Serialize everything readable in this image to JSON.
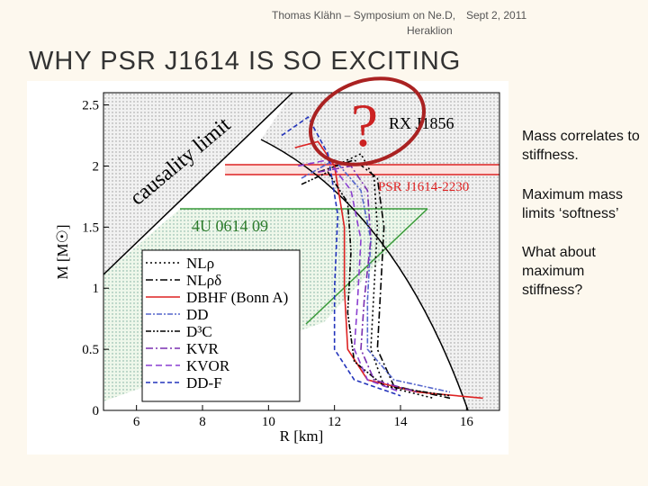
{
  "header": {
    "author_line": "Thomas Klähn – Symposium on Ne.D,",
    "place": "Heraklion",
    "date": "Sept 2, 2011"
  },
  "title": "WHY PSR J1614 IS SO EXCITING",
  "bullets": [
    "Mass correlates to stiffness.",
    "Maximum mass limits ‘softness’",
    "What about maximum stiffness?"
  ],
  "chart_data": {
    "type": "line",
    "x_label": "R [km]",
    "y_label": "M  [M☉]",
    "xlim": [
      5,
      17
    ],
    "xticks": [
      6,
      8,
      10,
      12,
      14,
      16
    ],
    "ylim": [
      0,
      2.6
    ],
    "yticks": [
      0,
      0.5,
      1,
      1.5,
      2,
      2.5
    ],
    "annotations": [
      "causality limit",
      "RX J1856",
      "PSR J1614-2230",
      "4U 0614   09",
      "?"
    ],
    "series": [
      {
        "name": "NLρ",
        "color": "#000000",
        "dash": "2,3",
        "x": [
          12.0,
          12.8,
          13.2,
          13.3,
          13.2,
          13.1,
          13.5,
          15.0
        ],
        "values": [
          2.0,
          2.1,
          1.9,
          1.5,
          1.0,
          0.5,
          0.2,
          0.1
        ]
      },
      {
        "name": "NLρδ",
        "color": "#000000",
        "dash": "8,3,2,3",
        "x": [
          11.5,
          12.6,
          13.3,
          13.5,
          13.4,
          13.3,
          13.8,
          15.5
        ],
        "values": [
          1.95,
          2.05,
          1.9,
          1.5,
          1.0,
          0.5,
          0.2,
          0.1
        ]
      },
      {
        "name": "DBHF (Bonn A)",
        "color": "#dd2222",
        "dash": "none",
        "x": [
          10.8,
          11.5,
          12.0,
          12.3,
          12.3,
          12.4,
          13.0,
          14.5,
          16.5
        ],
        "values": [
          2.15,
          2.2,
          2.0,
          1.5,
          1.0,
          0.5,
          0.25,
          0.15,
          0.1
        ]
      },
      {
        "name": "DD",
        "color": "#5566cc",
        "dash": "6,2,2,2",
        "x": [
          11.0,
          12.0,
          12.8,
          13.1,
          13.0,
          13.0,
          13.8,
          15.5
        ],
        "values": [
          1.9,
          2.05,
          1.8,
          1.4,
          0.9,
          0.5,
          0.25,
          0.15
        ]
      },
      {
        "name": "D³C",
        "color": "#000000",
        "dash": "6,2,2,2,2,2",
        "x": [
          11.0,
          11.8,
          12.4,
          12.5,
          12.4,
          12.6,
          13.5,
          15.5
        ],
        "values": [
          1.85,
          1.95,
          1.7,
          1.3,
          0.8,
          0.4,
          0.2,
          0.12
        ]
      },
      {
        "name": "KVR",
        "color": "#7a2fb0",
        "dash": "8,3,2,3",
        "x": [
          11.5,
          12.5,
          13.0,
          13.1,
          12.9,
          12.8,
          13.2,
          14.5
        ],
        "values": [
          1.95,
          2.0,
          1.8,
          1.4,
          0.9,
          0.5,
          0.25,
          0.15
        ]
      },
      {
        "name": "KVOR",
        "color": "#8a3fd0",
        "dash": "7,4",
        "x": [
          10.9,
          11.8,
          12.5,
          12.8,
          12.7,
          12.6,
          13.0,
          14.0
        ],
        "values": [
          2.0,
          2.05,
          1.8,
          1.4,
          0.9,
          0.5,
          0.25,
          0.15
        ]
      },
      {
        "name": "DD-F",
        "color": "#2233bb",
        "dash": "5,3",
        "x": [
          10.4,
          11.2,
          11.8,
          12.1,
          12.0,
          12.0,
          12.6,
          14.0
        ],
        "values": [
          2.25,
          2.4,
          2.1,
          1.6,
          1.0,
          0.5,
          0.25,
          0.12
        ]
      }
    ]
  }
}
